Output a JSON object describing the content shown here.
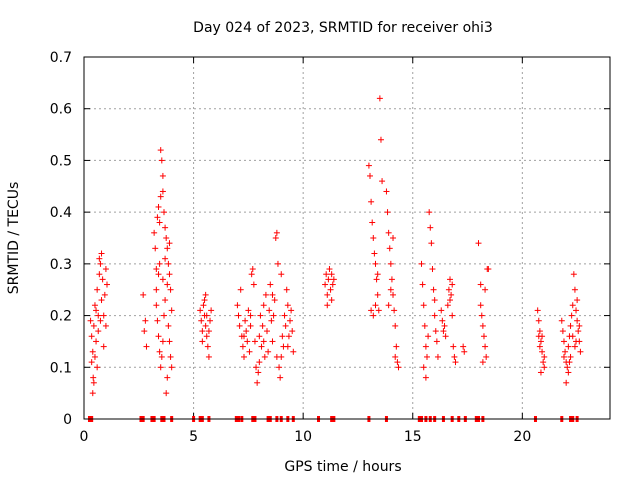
{
  "chart_data": {
    "type": "scatter",
    "title": "Day 024 of 2023, SRMTID for receiver ohi3",
    "xlabel": "GPS time / hours",
    "ylabel": "SRMTID / TECUs",
    "xlim": [
      0,
      24
    ],
    "ylim": [
      0,
      0.7
    ],
    "xticks": [
      0,
      5,
      10,
      15,
      20
    ],
    "xtick_labels": [
      "0",
      "5",
      "10",
      "15",
      "20"
    ],
    "yticks": [
      0,
      0.1,
      0.2,
      0.3,
      0.4,
      0.5,
      0.6,
      0.7
    ],
    "ytick_labels": [
      "0",
      "0.1",
      "0.2",
      "0.3",
      "0.4",
      "0.5",
      "0.6",
      "0.7"
    ],
    "grid": true,
    "marker": "+",
    "color": "#ff0000",
    "series": [
      {
        "name": "SRMTID",
        "points": [
          [
            0.3,
            0.19
          ],
          [
            0.35,
            0.16
          ],
          [
            0.4,
            0.13
          ],
          [
            0.45,
            0.18
          ],
          [
            0.5,
            0.22
          ],
          [
            0.55,
            0.15
          ],
          [
            0.6,
            0.25
          ],
          [
            0.65,
            0.2
          ],
          [
            0.7,
            0.28
          ],
          [
            0.75,
            0.3
          ],
          [
            0.8,
            0.23
          ],
          [
            0.85,
            0.27
          ],
          [
            0.9,
            0.2
          ],
          [
            0.95,
            0.24
          ],
          [
            1.0,
            0.18
          ],
          [
            1.05,
            0.26
          ],
          [
            0.45,
            0.07
          ],
          [
            0.4,
            0.05
          ],
          [
            0.42,
            0.08
          ],
          [
            0.5,
            0.12
          ],
          [
            0.6,
            0.1
          ],
          [
            0.7,
            0.31
          ],
          [
            0.8,
            0.32
          ],
          [
            0.65,
            0.17
          ],
          [
            0.55,
            0.21
          ],
          [
            0.35,
            0.11
          ],
          [
            0.9,
            0.14
          ],
          [
            1.0,
            0.29
          ],
          [
            0.75,
            0.19
          ],
          [
            2.7,
            0.24
          ],
          [
            2.75,
            0.17
          ],
          [
            2.8,
            0.19
          ],
          [
            2.85,
            0.14
          ],
          [
            3.2,
            0.36
          ],
          [
            3.25,
            0.33
          ],
          [
            3.3,
            0.29
          ],
          [
            3.35,
            0.39
          ],
          [
            3.4,
            0.28
          ],
          [
            3.45,
            0.3
          ],
          [
            3.5,
            0.52
          ],
          [
            3.55,
            0.5
          ],
          [
            3.6,
            0.47
          ],
          [
            3.6,
            0.44
          ],
          [
            3.65,
            0.4
          ],
          [
            3.7,
            0.37
          ],
          [
            3.75,
            0.35
          ],
          [
            3.8,
            0.33
          ],
          [
            3.85,
            0.3
          ],
          [
            3.9,
            0.28
          ],
          [
            3.95,
            0.25
          ],
          [
            3.3,
            0.22
          ],
          [
            3.35,
            0.19
          ],
          [
            3.4,
            0.16
          ],
          [
            3.45,
            0.13
          ],
          [
            3.5,
            0.1
          ],
          [
            3.55,
            0.12
          ],
          [
            3.6,
            0.15
          ],
          [
            3.65,
            0.2
          ],
          [
            3.7,
            0.23
          ],
          [
            3.75,
            0.05
          ],
          [
            3.8,
            0.08
          ],
          [
            3.85,
            0.18
          ],
          [
            3.9,
            0.15
          ],
          [
            3.95,
            0.12
          ],
          [
            4.0,
            0.21
          ],
          [
            3.4,
            0.41
          ],
          [
            3.45,
            0.38
          ],
          [
            3.5,
            0.43
          ],
          [
            3.6,
            0.27
          ],
          [
            3.7,
            0.31
          ],
          [
            3.8,
            0.26
          ],
          [
            3.9,
            0.34
          ],
          [
            3.3,
            0.25
          ],
          [
            4.0,
            0.1
          ],
          [
            5.3,
            0.21
          ],
          [
            5.35,
            0.19
          ],
          [
            5.4,
            0.17
          ],
          [
            5.45,
            0.22
          ],
          [
            5.5,
            0.2
          ],
          [
            5.55,
            0.18
          ],
          [
            5.6,
            0.16
          ],
          [
            5.65,
            0.14
          ],
          [
            5.7,
            0.12
          ],
          [
            5.75,
            0.19
          ],
          [
            5.8,
            0.21
          ],
          [
            5.5,
            0.23
          ],
          [
            5.6,
            0.2
          ],
          [
            5.4,
            0.15
          ],
          [
            5.7,
            0.17
          ],
          [
            5.55,
            0.24
          ],
          [
            7.0,
            0.22
          ],
          [
            7.05,
            0.2
          ],
          [
            7.1,
            0.18
          ],
          [
            7.15,
            0.25
          ],
          [
            7.2,
            0.16
          ],
          [
            7.25,
            0.14
          ],
          [
            7.3,
            0.12
          ],
          [
            7.35,
            0.19
          ],
          [
            7.4,
            0.17
          ],
          [
            7.45,
            0.15
          ],
          [
            7.5,
            0.21
          ],
          [
            7.55,
            0.13
          ],
          [
            7.6,
            0.18
          ],
          [
            7.65,
            0.28
          ],
          [
            7.7,
            0.29
          ],
          [
            7.75,
            0.26
          ],
          [
            7.8,
            0.15
          ],
          [
            7.85,
            0.1
          ],
          [
            7.9,
            0.07
          ],
          [
            7.95,
            0.09
          ],
          [
            8.0,
            0.16
          ],
          [
            8.05,
            0.2
          ],
          [
            8.1,
            0.14
          ],
          [
            8.15,
            0.18
          ],
          [
            8.2,
            0.22
          ],
          [
            8.25,
            0.12
          ],
          [
            8.3,
            0.24
          ],
          [
            8.35,
            0.17
          ],
          [
            8.4,
            0.13
          ],
          [
            8.45,
            0.21
          ],
          [
            8.5,
            0.26
          ],
          [
            8.55,
            0.19
          ],
          [
            8.6,
            0.15
          ],
          [
            8.65,
            0.2
          ],
          [
            8.7,
            0.23
          ],
          [
            8.75,
            0.35
          ],
          [
            8.8,
            0.36
          ],
          [
            8.85,
            0.3
          ],
          [
            8.9,
            0.1
          ],
          [
            8.95,
            0.08
          ],
          [
            9.0,
            0.12
          ],
          [
            9.05,
            0.16
          ],
          [
            9.1,
            0.14
          ],
          [
            9.15,
            0.2
          ],
          [
            9.2,
            0.18
          ],
          [
            9.25,
            0.25
          ],
          [
            9.3,
            0.22
          ],
          [
            9.35,
            0.16
          ],
          [
            9.4,
            0.19
          ],
          [
            9.45,
            0.21
          ],
          [
            9.5,
            0.17
          ],
          [
            9.55,
            0.13
          ],
          [
            7.3,
            0.16
          ],
          [
            7.6,
            0.2
          ],
          [
            8.0,
            0.11
          ],
          [
            8.2,
            0.15
          ],
          [
            8.6,
            0.24
          ],
          [
            8.8,
            0.12
          ],
          [
            9.0,
            0.28
          ],
          [
            9.3,
            0.14
          ],
          [
            11.0,
            0.26
          ],
          [
            11.05,
            0.28
          ],
          [
            11.1,
            0.24
          ],
          [
            11.15,
            0.27
          ],
          [
            11.2,
            0.29
          ],
          [
            11.25,
            0.25
          ],
          [
            11.3,
            0.23
          ],
          [
            11.35,
            0.26
          ],
          [
            11.4,
            0.27
          ],
          [
            11.1,
            0.22
          ],
          [
            11.3,
            0.28
          ],
          [
            13.0,
            0.49
          ],
          [
            13.05,
            0.47
          ],
          [
            13.1,
            0.42
          ],
          [
            13.15,
            0.38
          ],
          [
            13.2,
            0.35
          ],
          [
            13.25,
            0.32
          ],
          [
            13.3,
            0.3
          ],
          [
            13.35,
            0.27
          ],
          [
            13.4,
            0.24
          ],
          [
            13.45,
            0.21
          ],
          [
            13.5,
            0.62
          ],
          [
            13.55,
            0.54
          ],
          [
            13.6,
            0.46
          ],
          [
            13.1,
            0.21
          ],
          [
            13.2,
            0.2
          ],
          [
            13.3,
            0.22
          ],
          [
            13.4,
            0.28
          ],
          [
            13.8,
            0.44
          ],
          [
            13.85,
            0.4
          ],
          [
            13.9,
            0.36
          ],
          [
            13.95,
            0.33
          ],
          [
            14.0,
            0.3
          ],
          [
            14.05,
            0.27
          ],
          [
            14.1,
            0.24
          ],
          [
            14.15,
            0.21
          ],
          [
            14.2,
            0.18
          ],
          [
            14.25,
            0.14
          ],
          [
            14.3,
            0.11
          ],
          [
            14.35,
            0.1
          ],
          [
            14.0,
            0.25
          ],
          [
            14.1,
            0.35
          ],
          [
            13.9,
            0.22
          ],
          [
            14.2,
            0.12
          ],
          [
            15.4,
            0.3
          ],
          [
            15.45,
            0.26
          ],
          [
            15.5,
            0.22
          ],
          [
            15.55,
            0.18
          ],
          [
            15.6,
            0.14
          ],
          [
            15.65,
            0.12
          ],
          [
            15.7,
            0.16
          ],
          [
            15.75,
            0.4
          ],
          [
            15.8,
            0.37
          ],
          [
            15.85,
            0.34
          ],
          [
            15.9,
            0.29
          ],
          [
            15.95,
            0.25
          ],
          [
            16.0,
            0.2
          ],
          [
            16.05,
            0.17
          ],
          [
            16.1,
            0.15
          ],
          [
            16.15,
            0.12
          ],
          [
            15.5,
            0.1
          ],
          [
            15.6,
            0.08
          ],
          [
            16.0,
            0.23
          ],
          [
            16.3,
            0.21
          ],
          [
            16.35,
            0.19
          ],
          [
            16.4,
            0.17
          ],
          [
            16.45,
            0.18
          ],
          [
            16.5,
            0.16
          ],
          [
            16.6,
            0.22
          ],
          [
            16.65,
            0.25
          ],
          [
            16.7,
            0.27
          ],
          [
            16.75,
            0.24
          ],
          [
            16.8,
            0.2
          ],
          [
            16.85,
            0.14
          ],
          [
            16.9,
            0.12
          ],
          [
            16.95,
            0.11
          ],
          [
            17.3,
            0.14
          ],
          [
            17.35,
            0.13
          ],
          [
            16.7,
            0.23
          ],
          [
            16.8,
            0.26
          ],
          [
            18.0,
            0.34
          ],
          [
            18.1,
            0.26
          ],
          [
            18.15,
            0.2
          ],
          [
            18.2,
            0.18
          ],
          [
            18.25,
            0.16
          ],
          [
            18.3,
            0.14
          ],
          [
            18.35,
            0.12
          ],
          [
            18.4,
            0.29
          ],
          [
            18.45,
            0.29
          ],
          [
            18.3,
            0.25
          ],
          [
            18.2,
            0.11
          ],
          [
            18.1,
            0.22
          ],
          [
            20.7,
            0.21
          ],
          [
            20.75,
            0.19
          ],
          [
            20.8,
            0.17
          ],
          [
            20.85,
            0.15
          ],
          [
            20.9,
            0.13
          ],
          [
            20.95,
            0.11
          ],
          [
            21.0,
            0.1
          ],
          [
            20.8,
            0.14
          ],
          [
            20.9,
            0.16
          ],
          [
            21.0,
            0.12
          ],
          [
            20.85,
            0.09
          ],
          [
            20.75,
            0.16
          ],
          [
            21.8,
            0.19
          ],
          [
            21.85,
            0.17
          ],
          [
            21.9,
            0.15
          ],
          [
            21.95,
            0.13
          ],
          [
            22.0,
            0.11
          ],
          [
            22.05,
            0.1
          ],
          [
            22.1,
            0.14
          ],
          [
            22.15,
            0.16
          ],
          [
            22.2,
            0.18
          ],
          [
            22.25,
            0.2
          ],
          [
            22.3,
            0.22
          ],
          [
            22.35,
            0.28
          ],
          [
            22.4,
            0.25
          ],
          [
            22.45,
            0.21
          ],
          [
            22.5,
            0.19
          ],
          [
            22.55,
            0.17
          ],
          [
            22.6,
            0.15
          ],
          [
            22.65,
            0.13
          ],
          [
            22.0,
            0.07
          ],
          [
            22.1,
            0.09
          ],
          [
            22.2,
            0.12
          ],
          [
            22.3,
            0.16
          ],
          [
            22.4,
            0.14
          ],
          [
            22.5,
            0.23
          ],
          [
            22.6,
            0.18
          ],
          [
            21.9,
            0.12
          ],
          [
            22.15,
            0.11
          ],
          [
            22.45,
            0.15
          ]
        ],
        "zero_points_x": [
          0.25,
          0.35,
          2.6,
          2.7,
          3.1,
          3.2,
          3.55,
          3.65,
          4.0,
          5.0,
          5.3,
          5.4,
          5.7,
          6.95,
          7.05,
          7.2,
          7.7,
          7.8,
          8.4,
          8.5,
          8.8,
          9.0,
          9.3,
          9.55,
          10.7,
          11.3,
          11.4,
          13.0,
          13.8,
          15.3,
          15.4,
          15.6,
          15.8,
          16.0,
          16.4,
          16.8,
          17.1,
          17.4,
          17.9,
          18.0,
          18.2,
          20.6,
          21.8,
          22.2,
          22.3,
          22.5
        ]
      }
    ]
  }
}
